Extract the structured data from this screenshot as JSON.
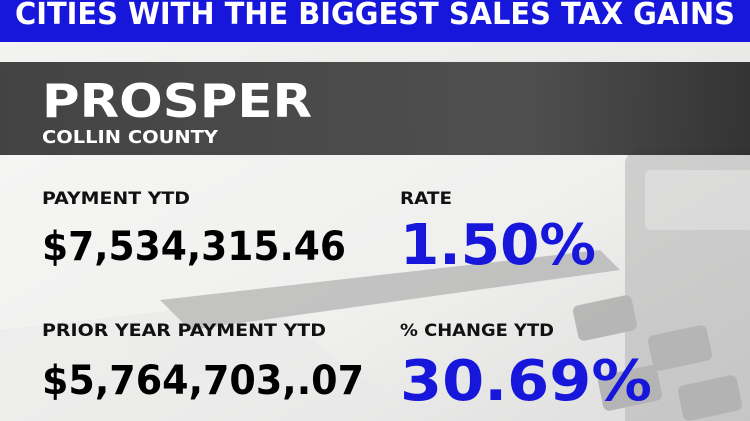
{
  "header": {
    "banner": "CITIES WITH THE BIGGEST SALES TAX GAINS",
    "city": "PROSPER",
    "county": "COLLIN COUNTY"
  },
  "stats": [
    {
      "label": "PAYMENT YTD",
      "value": "$7,534,315.46"
    },
    {
      "label": "RATE",
      "value": "1.50%"
    },
    {
      "label": "PRIOR YEAR PAYMENT YTD",
      "value": "$5,764,703,.07"
    },
    {
      "label": "% CHANGE YTD",
      "value": "30.69%"
    }
  ]
}
